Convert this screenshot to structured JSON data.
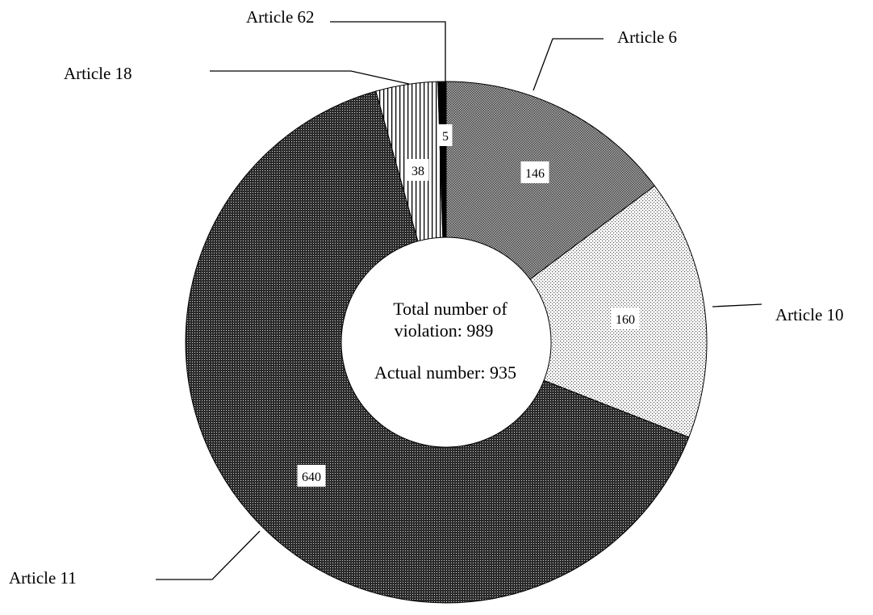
{
  "chart_data": {
    "type": "pie",
    "variant": "donut",
    "categories": [
      "Article 6",
      "Article 10",
      "Article 11",
      "Article 18",
      "Article 62"
    ],
    "values": [
      146,
      160,
      640,
      38,
      5
    ],
    "data_labels": [
      "146",
      "160",
      "640",
      "38",
      "5"
    ],
    "patterns": [
      "dense-dots",
      "sparse-dots",
      "dark-dots",
      "vertical-stripes",
      "solid"
    ],
    "colors": {
      "dense-dots": "#999999",
      "sparse-dots": "#f2f2f2",
      "dark-dots": "#6e6e6e",
      "vertical-stripes": "#ffffff",
      "solid": "#000000"
    },
    "center_text": [
      "Total number of",
      "violation: 989",
      "Actual number: 935"
    ],
    "legend": "none"
  }
}
